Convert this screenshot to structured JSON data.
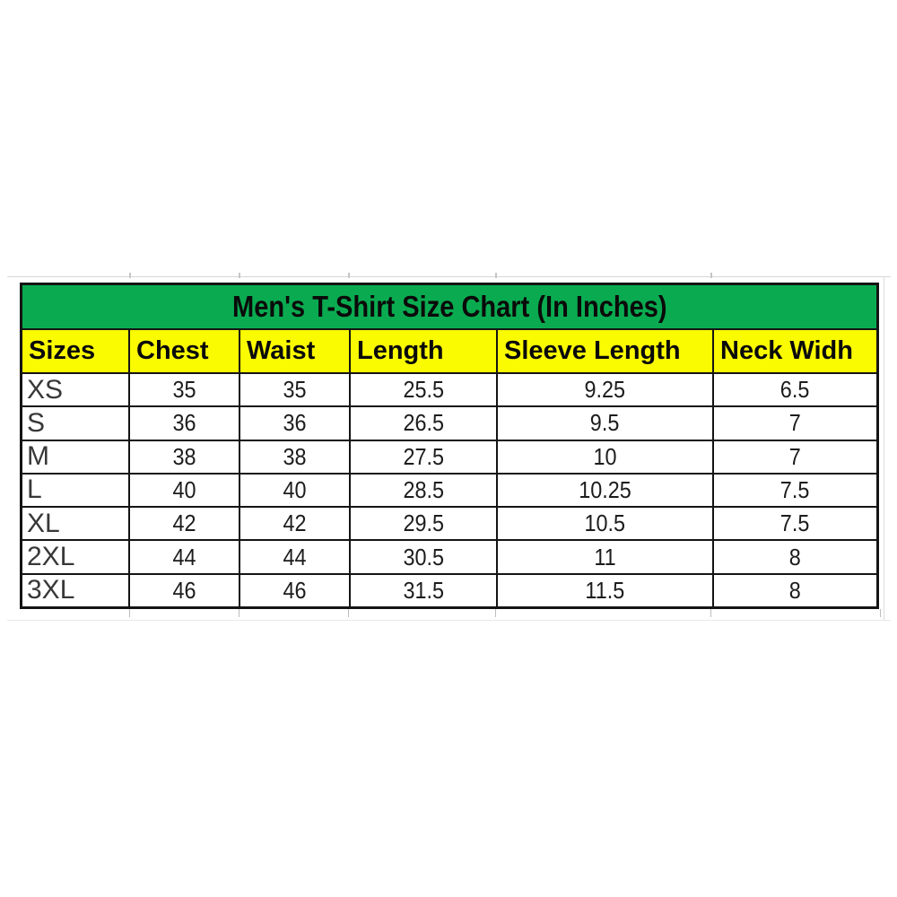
{
  "chart_data": {
    "type": "table",
    "title": "Men's T-Shirt Size Chart (In Inches)",
    "columns": [
      "Sizes",
      "Chest",
      "Waist",
      "Length",
      "Sleeve Length",
      "Neck Widh"
    ],
    "rows": [
      [
        "XS",
        "35",
        "35",
        "25.5",
        "9.25",
        "6.5"
      ],
      [
        "S",
        "36",
        "36",
        "26.5",
        "9.5",
        "7"
      ],
      [
        "M",
        "38",
        "38",
        "27.5",
        "10",
        "7"
      ],
      [
        "L",
        "40",
        "40",
        "28.5",
        "10.25",
        "7.5"
      ],
      [
        "XL",
        "42",
        "42",
        "29.5",
        "10.5",
        "7.5"
      ],
      [
        "2XL",
        "44",
        "44",
        "30.5",
        "11",
        "8"
      ],
      [
        "3XL",
        "46",
        "46",
        "31.5",
        "11.5",
        "8"
      ]
    ]
  },
  "colors": {
    "title_bg": "#0aab50",
    "header_bg": "#fafa00",
    "grid_border": "#141414",
    "title_text": "#0a0a0a",
    "size_text": "#383838",
    "value_text": "#1c1c1c"
  }
}
